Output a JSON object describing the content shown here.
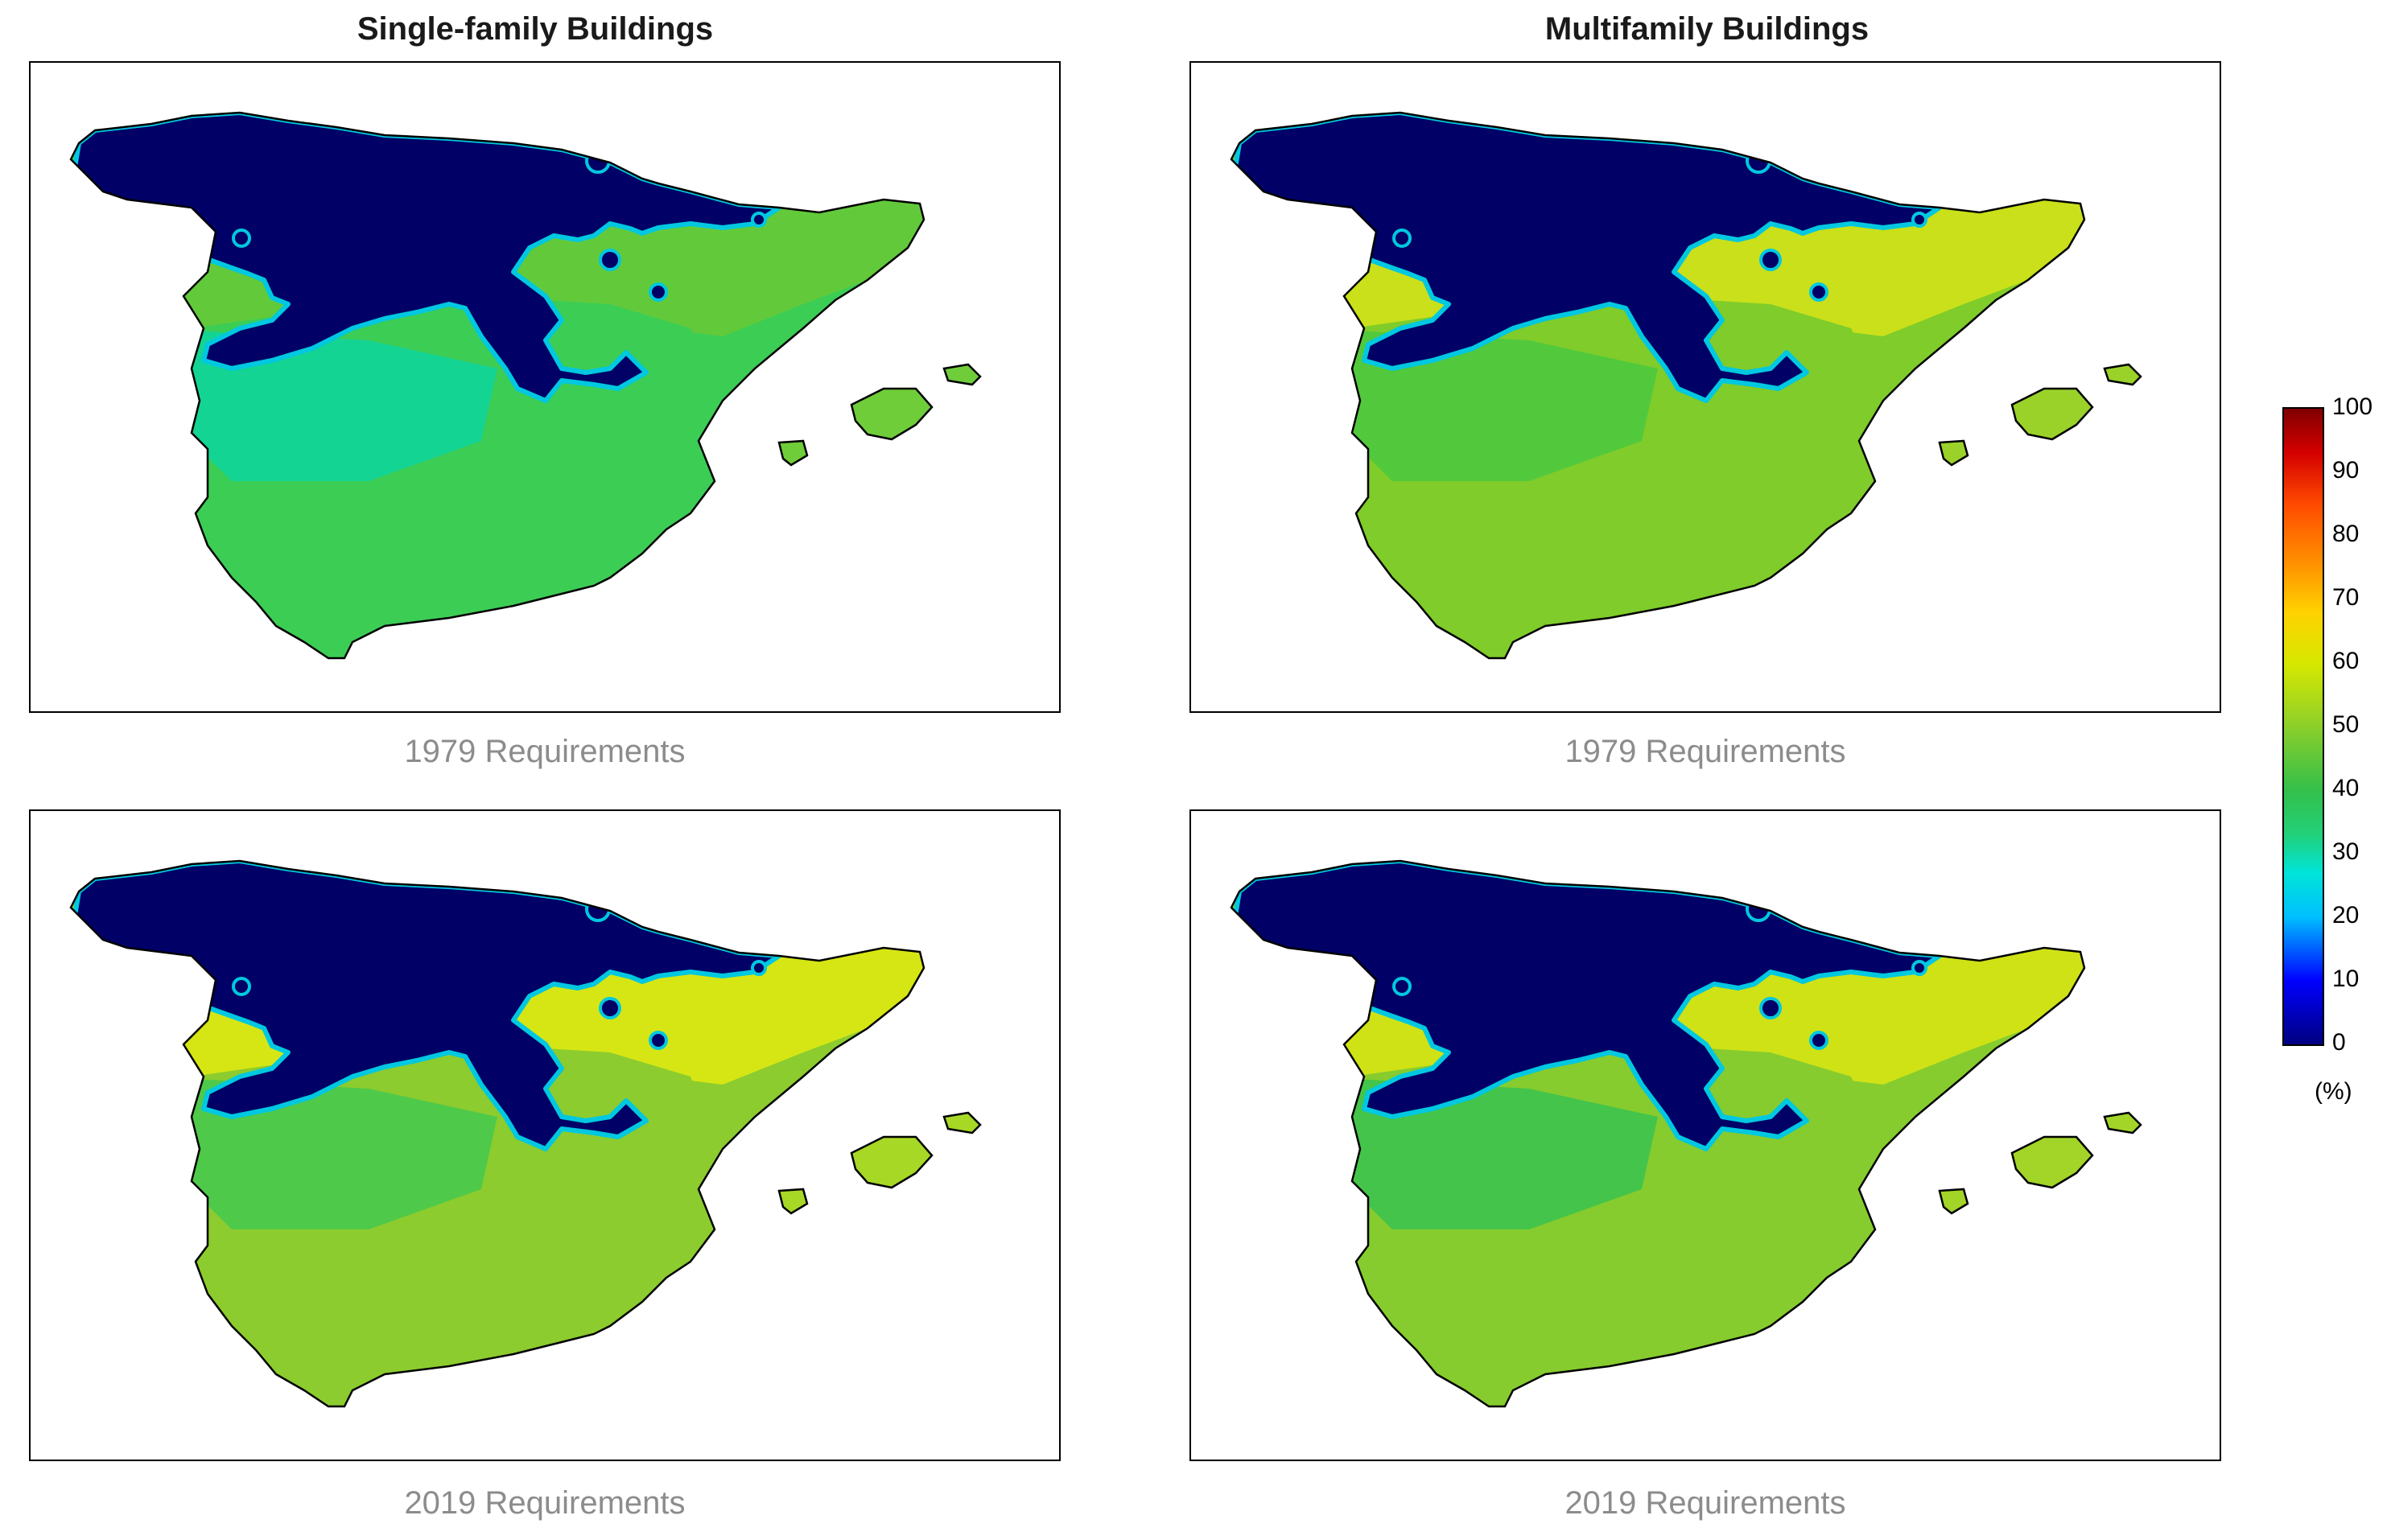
{
  "columns": [
    "Single-family Buildings",
    "Multifamily Buildings"
  ],
  "panels": [
    {
      "column": "Single-family Buildings",
      "caption": "1979 Requirements",
      "fills": {
        "south": "#14d493",
        "centre": "#3ccd55",
        "north": "#62ca3a",
        "islands": "#6fcd3a"
      }
    },
    {
      "column": "Multifamily Buildings",
      "caption": "1979 Requirements",
      "fills": {
        "south": "#52c93c",
        "centre": "#7fcc2a",
        "north": "#c9e01a",
        "islands": "#9bd22a"
      }
    },
    {
      "column": "Single-family Buildings",
      "caption": "2019 Requirements",
      "fills": {
        "south": "#4fc94a",
        "centre": "#8ccc2e",
        "north": "#d6e614",
        "islands": "#a7d826"
      }
    },
    {
      "column": "Multifamily Buildings",
      "caption": "2019 Requirements",
      "fills": {
        "south": "#44c44a",
        "centre": "#86cc2e",
        "north": "#cfe216",
        "islands": "#a2d528"
      }
    }
  ],
  "cold_zone_color": "#000066",
  "colorbar": {
    "ticks": [
      "100",
      "90",
      "80",
      "70",
      "60",
      "50",
      "40",
      "30",
      "20",
      "10",
      "0"
    ],
    "unit": "(%)",
    "colormap": "jet"
  }
}
